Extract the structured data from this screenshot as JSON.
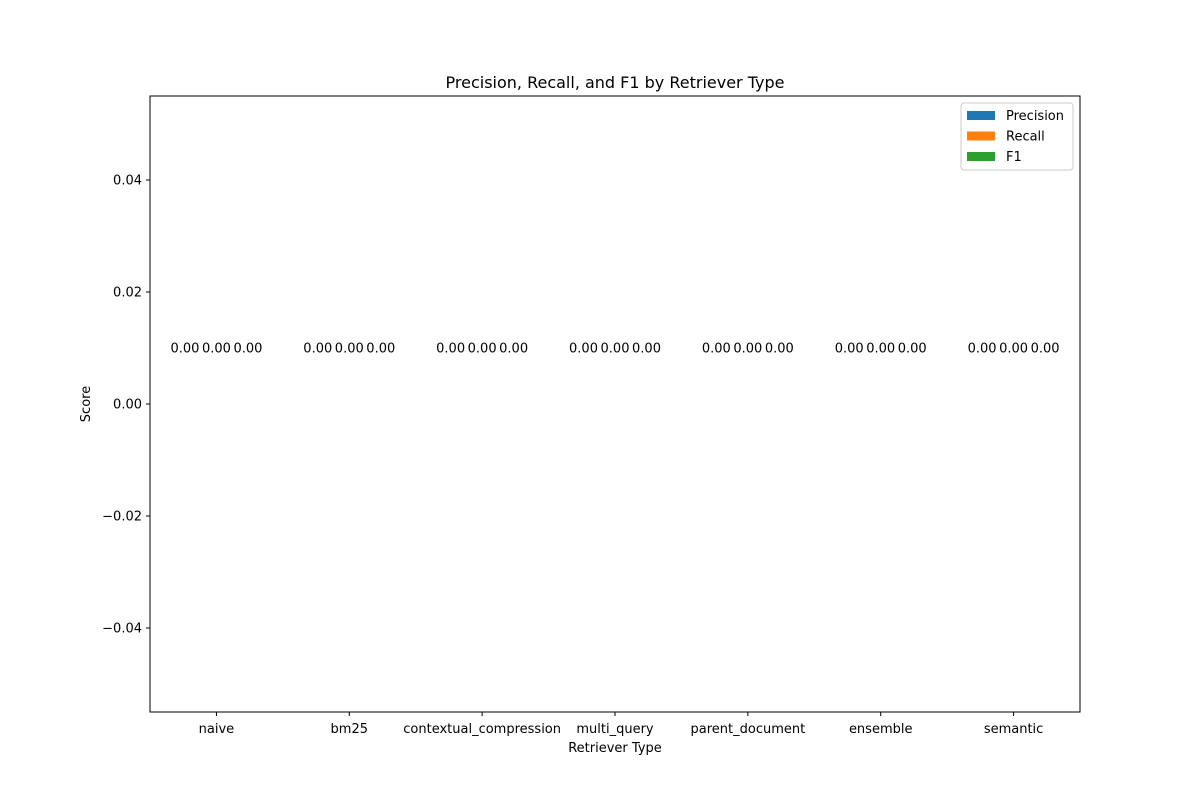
{
  "chart_data": {
    "type": "bar",
    "title": "Precision, Recall, and F1 by Retriever Type",
    "xlabel": "Retriever Type",
    "ylabel": "Score",
    "categories": [
      "naive",
      "bm25",
      "contextual_compression",
      "multi_query",
      "parent_document",
      "ensemble",
      "semantic"
    ],
    "series": [
      {
        "name": "Precision",
        "color": "#1f77b4",
        "values": [
          0,
          0,
          0,
          0,
          0,
          0,
          0
        ]
      },
      {
        "name": "Recall",
        "color": "#ff7f0e",
        "values": [
          0,
          0,
          0,
          0,
          0,
          0,
          0
        ]
      },
      {
        "name": "F1",
        "color": "#2ca02c",
        "values": [
          0,
          0,
          0,
          0,
          0,
          0,
          0
        ]
      }
    ],
    "ylim": [
      -0.055,
      0.055
    ],
    "yticks": [
      0.04,
      0.02,
      0.0,
      -0.02,
      -0.04
    ],
    "ytick_labels": [
      "0.04",
      "0.02",
      "0.00",
      "−0.02",
      "−0.04"
    ],
    "bar_labels": [
      "0.00",
      "0.00",
      "0.00",
      "0.00",
      "0.00",
      "0.00",
      "0.00"
    ],
    "grid": false,
    "legend_position": "top-right"
  }
}
